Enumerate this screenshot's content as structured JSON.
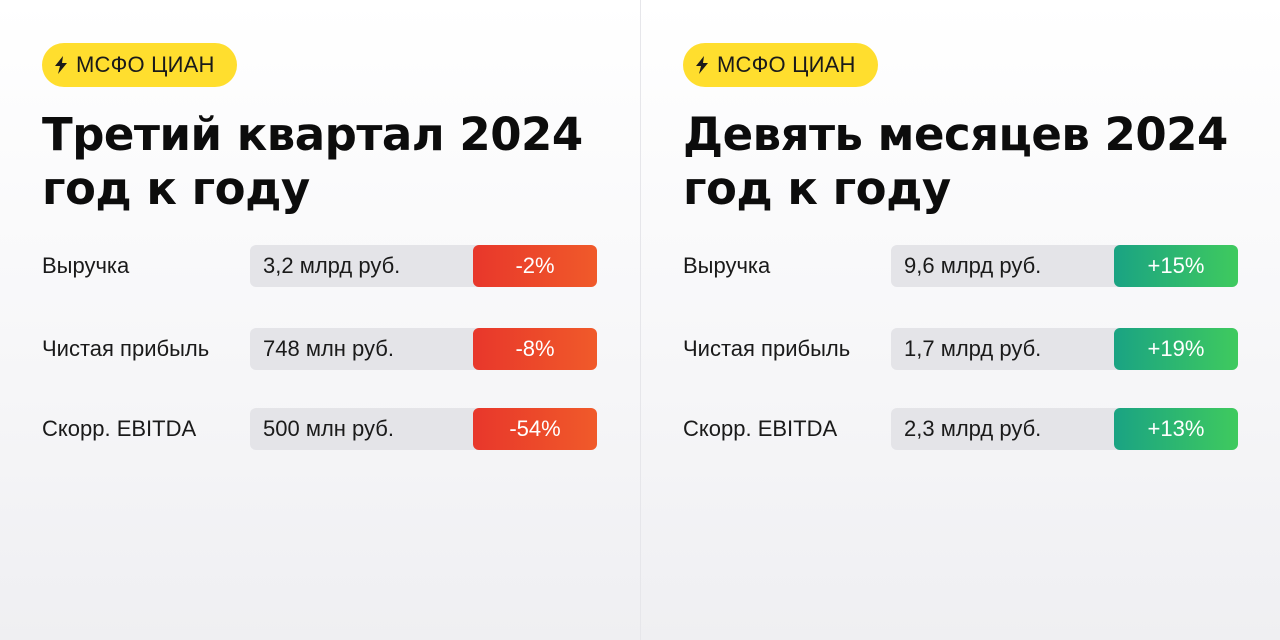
{
  "cards": [
    {
      "badge": "МСФО ЦИАН",
      "badge_icon": "lightning-icon",
      "title_line1": "Третий квартал 2024",
      "title_line2": "год к году",
      "rows": [
        {
          "label": "Выручка",
          "value": "3,2 млрд руб.",
          "delta": "-2%",
          "trend": "negative"
        },
        {
          "label": "Чистая прибыль",
          "value": "748 млн руб.",
          "delta": "-8%",
          "trend": "negative"
        },
        {
          "label": "Скорр. EBITDA",
          "value": "500 млн руб.",
          "delta": "-54%",
          "trend": "negative"
        }
      ]
    },
    {
      "badge": "МСФО ЦИАН",
      "badge_icon": "lightning-icon",
      "title_line1": "Девять месяцев 2024",
      "title_line2": "год к году",
      "rows": [
        {
          "label": "Выручка",
          "value": "9,6 млрд руб.",
          "delta": "+15%",
          "trend": "positive"
        },
        {
          "label": "Чистая прибыль",
          "value": "1,7 млрд руб.",
          "delta": "+19%",
          "trend": "positive"
        },
        {
          "label": "Скорр. EBITDA",
          "value": "2,3 млрд руб.",
          "delta": "+13%",
          "trend": "positive"
        }
      ]
    }
  ],
  "colors": {
    "badge_bg": "#ffde2e",
    "negative": "#e8372b",
    "positive": "#1aa383",
    "value_bg": "#e4e4e8"
  }
}
